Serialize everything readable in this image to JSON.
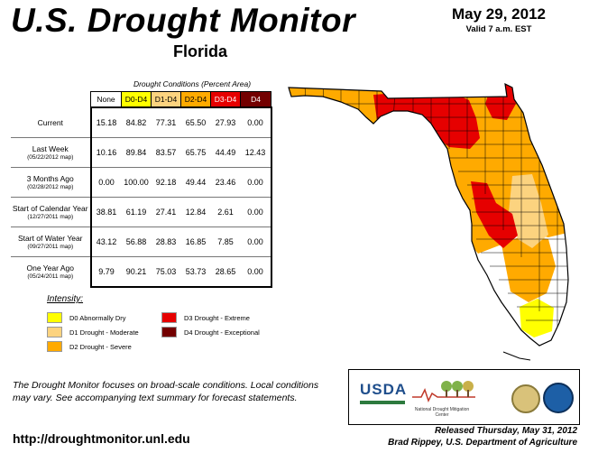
{
  "header": {
    "title": "U.S. Drought Monitor",
    "state": "Florida",
    "date": "May 29, 2012",
    "valid": "Valid 7 a.m. EST"
  },
  "table": {
    "caption": "Drought Conditions (Percent Area)",
    "columns": [
      "None",
      "D0-D4",
      "D1-D4",
      "D2-D4",
      "D3-D4",
      "D4"
    ],
    "column_colors": [
      "#ffffff",
      "#ffff00",
      "#fcd37f",
      "#ffaa00",
      "#e60000",
      "#730000"
    ],
    "column_text_colors": [
      "#000000",
      "#000000",
      "#000000",
      "#000000",
      "#ffffff",
      "#ffffff"
    ],
    "rows": [
      {
        "label": "Current",
        "sub": "",
        "values": [
          "15.18",
          "84.82",
          "77.31",
          "65.50",
          "27.93",
          "0.00"
        ]
      },
      {
        "label": "Last Week",
        "sub": "(05/22/2012 map)",
        "values": [
          "10.16",
          "89.84",
          "83.57",
          "65.75",
          "44.49",
          "12.43"
        ]
      },
      {
        "label": "3 Months Ago",
        "sub": "(02/28/2012 map)",
        "values": [
          "0.00",
          "100.00",
          "92.18",
          "49.44",
          "23.46",
          "0.00"
        ]
      },
      {
        "label": "Start of Calendar Year",
        "sub": "(12/27/2011 map)",
        "values": [
          "38.81",
          "61.19",
          "27.41",
          "12.84",
          "2.61",
          "0.00"
        ]
      },
      {
        "label": "Start of Water Year",
        "sub": "(09/27/2011 map)",
        "values": [
          "43.12",
          "56.88",
          "28.83",
          "16.85",
          "7.85",
          "0.00"
        ]
      },
      {
        "label": "One Year Ago",
        "sub": "(05/24/2011 map)",
        "values": [
          "9.79",
          "90.21",
          "75.03",
          "53.73",
          "28.65",
          "0.00"
        ]
      }
    ]
  },
  "legend": {
    "title": "Intensity:",
    "items": [
      {
        "label": "D0 Abnormally Dry",
        "color": "#ffff00"
      },
      {
        "label": "D1 Drought - Moderate",
        "color": "#fcd37f"
      },
      {
        "label": "D2 Drought - Severe",
        "color": "#ffaa00"
      },
      {
        "label": "D3 Drought - Extreme",
        "color": "#e60000"
      },
      {
        "label": "D4 Drought - Exceptional",
        "color": "#730000"
      }
    ]
  },
  "note": "The Drought Monitor focuses on broad-scale conditions. Local conditions may vary. See accompanying text summary for forecast statements.",
  "url": "http://droughtmonitor.unl.edu",
  "logos": {
    "usda": "USDA",
    "ndmc": "National Drought Mitigation Center"
  },
  "released": {
    "line1": "Released Thursday, May 31, 2012",
    "line2": "Brad Rippey, U.S. Department of Agriculture"
  },
  "map": {
    "region": "Florida",
    "colors": {
      "none": "#ffffff",
      "d0": "#ffff00",
      "d1": "#fcd37f",
      "d2": "#ffaa00",
      "d3": "#e60000",
      "d4": "#730000",
      "border": "#000000"
    }
  }
}
